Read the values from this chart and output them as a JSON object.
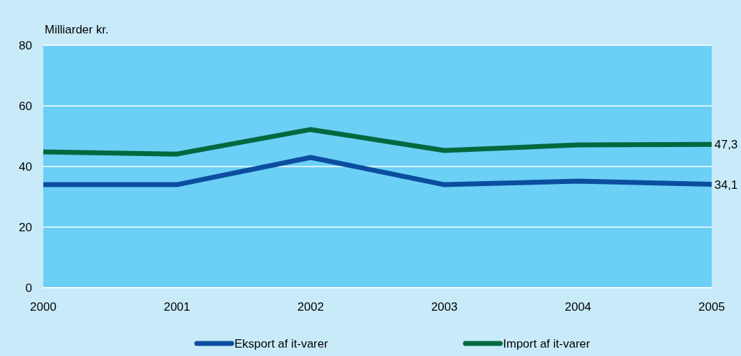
{
  "chart_data": {
    "type": "line",
    "ylabel": "Milliarder kr.",
    "x": [
      2000,
      2001,
      2002,
      2003,
      2004,
      2005
    ],
    "xlim": [
      2000,
      2005
    ],
    "xticks": [
      2000,
      2001,
      2002,
      2003,
      2004,
      2005
    ],
    "ylim": [
      0,
      80
    ],
    "yticks": [
      0,
      20,
      40,
      60,
      80
    ],
    "grid": "y",
    "legend": "bottom",
    "marker": "none",
    "line_style": "solid",
    "series": [
      {
        "name": "Eksport af it-varer",
        "color": "#0b4d9e",
        "values": [
          34.0,
          34.0,
          43.0,
          34.0,
          35.2,
          34.1
        ]
      },
      {
        "name": "Import af it-varer",
        "color": "#00693e",
        "values": [
          44.8,
          44.1,
          52.2,
          45.3,
          47.1,
          47.3
        ]
      }
    ],
    "annotations": [
      {
        "text": "47,3",
        "x": 2005,
        "y": 47.3
      },
      {
        "text": "34,1",
        "x": 2005,
        "y": 34.1
      }
    ]
  }
}
